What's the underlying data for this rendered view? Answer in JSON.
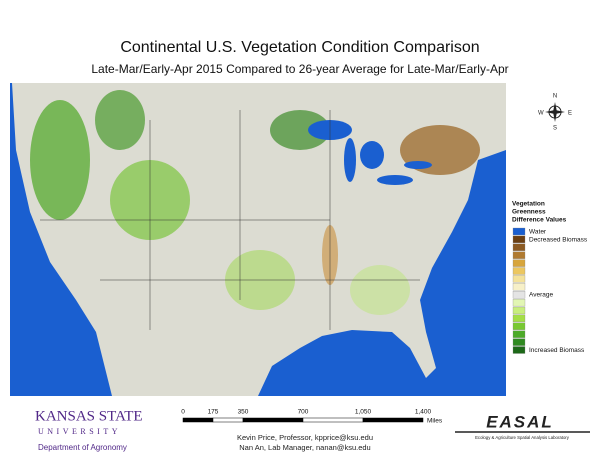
{
  "header": {
    "title": "Continental U.S. Vegetation Condition Comparison",
    "subtitle": "Late-Mar/Early-Apr 2015 Compared to 26-year Average for Late-Mar/Early-Apr"
  },
  "compass": {
    "north": "N",
    "south": "S",
    "east": "E",
    "west": "W"
  },
  "legend": {
    "title": [
      "Vegetation",
      "Greenness",
      "Difference Values"
    ],
    "swatches": [
      {
        "color": "#1a5fd0",
        "label": "Water"
      },
      {
        "color": "#6b3f12",
        "label": "Decreased Biomass"
      },
      {
        "color": "#8c5a22"
      },
      {
        "color": "#b07a30"
      },
      {
        "color": "#d7a53c"
      },
      {
        "color": "#ecc760"
      },
      {
        "color": "#f4e29a"
      },
      {
        "color": "#f7f0c8"
      },
      {
        "color": "#e4e4e4",
        "label": "Average"
      },
      {
        "color": "#e2f6b4"
      },
      {
        "color": "#c8ee7e"
      },
      {
        "color": "#a4de46"
      },
      {
        "color": "#78c832"
      },
      {
        "color": "#4caa28"
      },
      {
        "color": "#2f8a20"
      },
      {
        "color": "#1d6818",
        "label": "Increased Biomass"
      }
    ]
  },
  "scale": {
    "ticks": [
      "0",
      "175",
      "350",
      "700",
      "1,050",
      "1,400"
    ],
    "unit": "Miles"
  },
  "logo": {
    "name": "KANSAS STATE",
    "university": "UNIVERSITY",
    "department": "Department of Agronomy"
  },
  "credits": [
    "Kevin Price, Professor, kpprice@ksu.edu",
    "Nan An, Lab Manager, nanan@ksu.edu"
  ],
  "easal": {
    "name": "EASAL",
    "subtitle": "Ecology & Agriculture Spatial Analysis Laboratory"
  }
}
